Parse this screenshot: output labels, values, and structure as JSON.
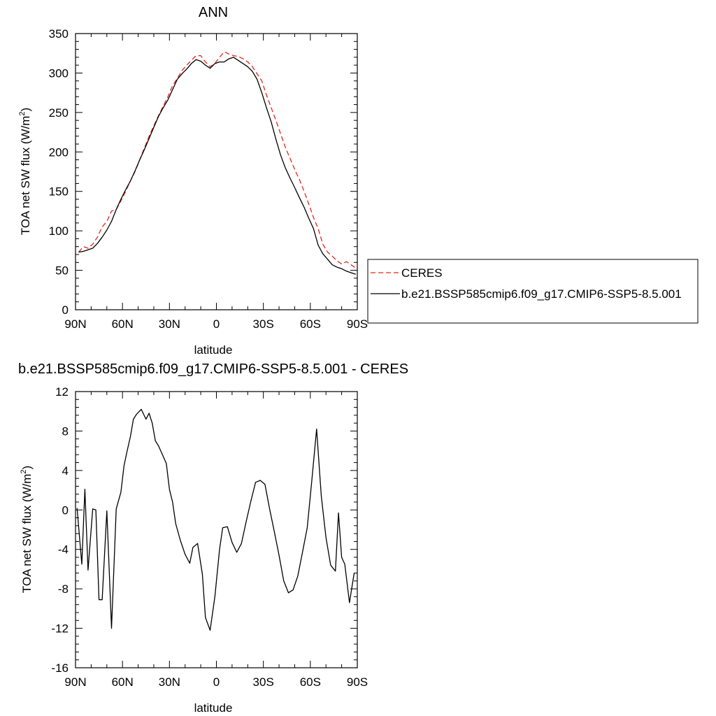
{
  "chart_data": [
    {
      "type": "line",
      "title": "ANN",
      "xlabel": "latitude",
      "ylabel": "TOA net SW flux (W/m",
      "ylabel_sup": "2",
      "ylabel_close": ")",
      "xlim": [
        90,
        -90
      ],
      "ylim": [
        0,
        350
      ],
      "xticks": [
        {
          "v": 90,
          "label": "90N"
        },
        {
          "v": 60,
          "label": "60N"
        },
        {
          "v": 30,
          "label": "30N"
        },
        {
          "v": 0,
          "label": "0"
        },
        {
          "v": -30,
          "label": "30S"
        },
        {
          "v": -60,
          "label": "60S"
        },
        {
          "v": -90,
          "label": "90S"
        }
      ],
      "yticks": [
        0,
        50,
        100,
        150,
        200,
        250,
        300,
        350
      ],
      "legend_position": "right",
      "series": [
        {
          "name": "CERES",
          "color": "#e8231c",
          "dash": "dashed",
          "x": [
            88,
            85,
            82,
            79,
            76,
            73,
            70,
            67,
            64,
            61,
            58,
            55,
            52,
            49,
            46,
            43,
            40,
            37,
            34,
            31,
            28,
            25,
            22,
            19,
            16,
            13,
            10,
            7,
            4,
            1,
            -2,
            -5,
            -8,
            -11,
            -14,
            -17,
            -20,
            -23,
            -26,
            -29,
            -32,
            -35,
            -38,
            -41,
            -44,
            -47,
            -50,
            -53,
            -56,
            -59,
            -62,
            -65,
            -68,
            -71,
            -74,
            -77,
            -80,
            -83,
            -86,
            -89
          ],
          "y": [
            73,
            80,
            78,
            83,
            92,
            105,
            112,
            125,
            127,
            138,
            150,
            163,
            175,
            190,
            205,
            220,
            233,
            246,
            258,
            270,
            284,
            293,
            303,
            310,
            316,
            322,
            322,
            314,
            308,
            312,
            320,
            327,
            324,
            322,
            321,
            318,
            314,
            308,
            299,
            290,
            272,
            256,
            240,
            223,
            206,
            192,
            178,
            165,
            150,
            134,
            117,
            103,
            83,
            73,
            68,
            62,
            58,
            61,
            57,
            53
          ]
        },
        {
          "name": "b.e21.BSSP585cmip6.f09_g17.CMIP6-SSP5-8.5.001",
          "color": "#000000",
          "dash": "solid",
          "x": [
            88,
            85,
            82,
            79,
            76,
            73,
            70,
            67,
            64,
            61,
            58,
            55,
            52,
            49,
            46,
            43,
            40,
            37,
            34,
            31,
            28,
            25,
            22,
            19,
            16,
            13,
            10,
            7,
            4,
            1,
            -2,
            -5,
            -8,
            -11,
            -14,
            -17,
            -20,
            -23,
            -26,
            -29,
            -32,
            -35,
            -38,
            -41,
            -44,
            -47,
            -50,
            -53,
            -56,
            -59,
            -62,
            -65,
            -68,
            -71,
            -74,
            -77,
            -80,
            -83,
            -86,
            -89
          ],
          "y": [
            73,
            74,
            76,
            78,
            84,
            92,
            101,
            112,
            127,
            140,
            152,
            163,
            176,
            190,
            203,
            217,
            231,
            245,
            256,
            266,
            279,
            292,
            299,
            305,
            312,
            317,
            315,
            310,
            306,
            312,
            314,
            314,
            318,
            320,
            316,
            312,
            308,
            302,
            292,
            275,
            256,
            238,
            216,
            196,
            180,
            167,
            155,
            142,
            130,
            116,
            103,
            82,
            71,
            64,
            57,
            54,
            52,
            49,
            47,
            45
          ]
        }
      ]
    },
    {
      "type": "line",
      "title": "b.e21.BSSP585cmip6.f09_g17.CMIP6-SSP5-8.5.001 - CERES",
      "xlabel": "latitude",
      "ylabel": "TOA net SW flux (W/m",
      "ylabel_sup": "2",
      "ylabel_close": ")",
      "xlim": [
        90,
        -90
      ],
      "ylim": [
        -16,
        12
      ],
      "xticks": [
        {
          "v": 90,
          "label": "90N"
        },
        {
          "v": 60,
          "label": "60N"
        },
        {
          "v": 30,
          "label": "30N"
        },
        {
          "v": 0,
          "label": "0"
        },
        {
          "v": -30,
          "label": "30S"
        },
        {
          "v": -60,
          "label": "60S"
        },
        {
          "v": -90,
          "label": "90S"
        }
      ],
      "yticks": [
        -16,
        -12,
        -8,
        -4,
        0,
        4,
        8,
        12
      ],
      "series": [
        {
          "color": "#000000",
          "dash": "solid",
          "x": [
            89,
            86,
            84,
            82,
            79,
            77,
            75,
            73,
            70,
            67,
            64,
            61,
            59,
            57,
            55,
            53,
            51,
            48,
            45,
            43,
            41,
            39,
            37,
            35,
            32,
            30,
            28,
            26,
            23,
            20,
            17,
            15,
            12,
            9,
            7,
            4,
            1,
            -2,
            -4,
            -7,
            -10,
            -13,
            -16,
            -19,
            -22,
            -25,
            -28,
            -31,
            -34,
            -37,
            -40,
            -43,
            -46,
            -49,
            -52,
            -55,
            -58,
            -61,
            -64,
            -67,
            -70,
            -73,
            -76,
            -78,
            -80,
            -82,
            -85,
            -88
          ],
          "y": [
            0.2,
            -5.5,
            2.1,
            -6.1,
            0.1,
            0.0,
            -9.1,
            -9.1,
            -0.1,
            -12.0,
            0.1,
            1.8,
            4.5,
            6.0,
            7.4,
            9.2,
            9.7,
            10.2,
            9.2,
            9.8,
            8.8,
            7.0,
            6.5,
            5.8,
            4.7,
            2.1,
            0.8,
            -1.4,
            -3.1,
            -4.5,
            -5.4,
            -3.8,
            -3.4,
            -6.5,
            -10.9,
            -12.2,
            -8.8,
            -4.0,
            -1.8,
            -1.7,
            -3.3,
            -4.3,
            -3.4,
            -1.2,
            0.9,
            2.8,
            3.0,
            2.6,
            0.1,
            -2.2,
            -4.6,
            -7.2,
            -8.4,
            -8.1,
            -6.7,
            -4.3,
            -1.8,
            3.1,
            8.2,
            1.4,
            -2.8,
            -5.6,
            -6.2,
            -0.3,
            -4.8,
            -5.5,
            -9.4,
            -6.4
          ]
        }
      ]
    }
  ]
}
